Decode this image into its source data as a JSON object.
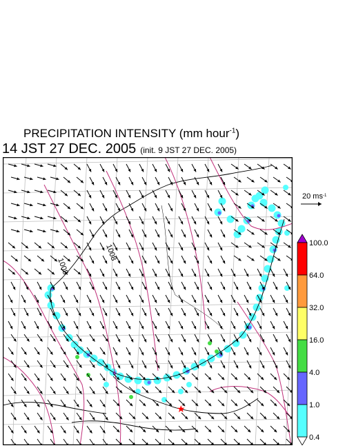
{
  "title": {
    "line1_text": "PRECIPITATION INTENSITY (mm hour",
    "line1_exp": "-1",
    "line1_close": ")",
    "line2_main": "14 JST 27 DEC. 2005",
    "line2_init": "(init. 9 JST 27 DEC. 2005)"
  },
  "wind_reference": {
    "label": "20 ms",
    "exp": "-1"
  },
  "colorbar": {
    "levels": [
      "100.0",
      "64.0",
      "32.0",
      "16.0",
      "4.0",
      "1.0",
      "0.4"
    ],
    "colors": [
      "#a000d0",
      "#ff0000",
      "#ff9a3c",
      "#ffff66",
      "#44dd44",
      "#6666ff",
      "#55ffff",
      "#ffffff"
    ]
  },
  "contour_labels": [
    "1008",
    "1008"
  ],
  "station_marker": {
    "symbol": "★",
    "color": "#ff0000"
  },
  "colors": {
    "isobar": "#c0307a",
    "grid": "#bdbdbd",
    "coast": "#000000",
    "arrow": "#000000",
    "precip_light": "#55ffff",
    "precip_moderate": "#6666ff",
    "precip_heavy": "#44dd44"
  }
}
